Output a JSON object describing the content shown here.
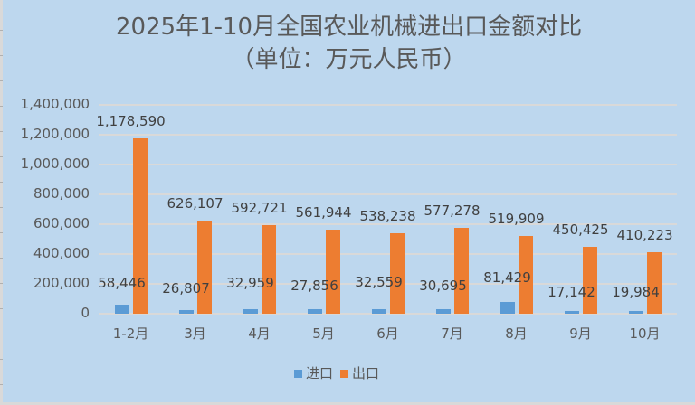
{
  "chart": {
    "title": "2025年1-10月全国农业机械进出口金额对比",
    "subtitle": "（单位：万元人民币）",
    "colors": {
      "import": "#5b9bd5",
      "export": "#ed7d31",
      "background": "#bdd7ee",
      "gridline": "#d9d9d9",
      "text": "#595959"
    }
  },
  "legend": [
    {
      "label": "进口",
      "color": "#5b9bd5"
    },
    {
      "label": "出口",
      "color": "#ed7d31"
    }
  ],
  "y_ticks": [
    "0",
    "200,000",
    "400,000",
    "600,000",
    "800,000",
    "1,000,000",
    "1,200,000",
    "1,400,000"
  ],
  "labels": {
    "import": [
      "58,446",
      "26,807",
      "32,959",
      "27,856",
      "32,559",
      "30,695",
      "81,429",
      "17,142",
      "19,984"
    ],
    "export": [
      "1,178,590",
      "626,107",
      "592,721",
      "561,944",
      "538,238",
      "577,278",
      "519,909",
      "450,425",
      "410,223"
    ]
  },
  "chart_data": {
    "type": "bar",
    "title": "2025年1-10月全国农业机械进出口金额对比（单位：万元人民币）",
    "xlabel": "",
    "ylabel": "",
    "categories": [
      "1-2月",
      "3月",
      "4月",
      "5月",
      "6月",
      "7月",
      "8月",
      "9月",
      "10月"
    ],
    "series": [
      {
        "name": "进口",
        "values": [
          58446,
          26807,
          32959,
          27856,
          32559,
          30695,
          81429,
          17142,
          19984
        ]
      },
      {
        "name": "出口",
        "values": [
          1178590,
          626107,
          592721,
          561944,
          538238,
          577278,
          519909,
          450425,
          410223
        ]
      }
    ],
    "ylim": [
      0,
      1400000
    ],
    "yticks": [
      0,
      200000,
      400000,
      600000,
      800000,
      1000000,
      1200000,
      1400000
    ],
    "grid": true,
    "legend_position": "bottom",
    "data_labels": true
  }
}
